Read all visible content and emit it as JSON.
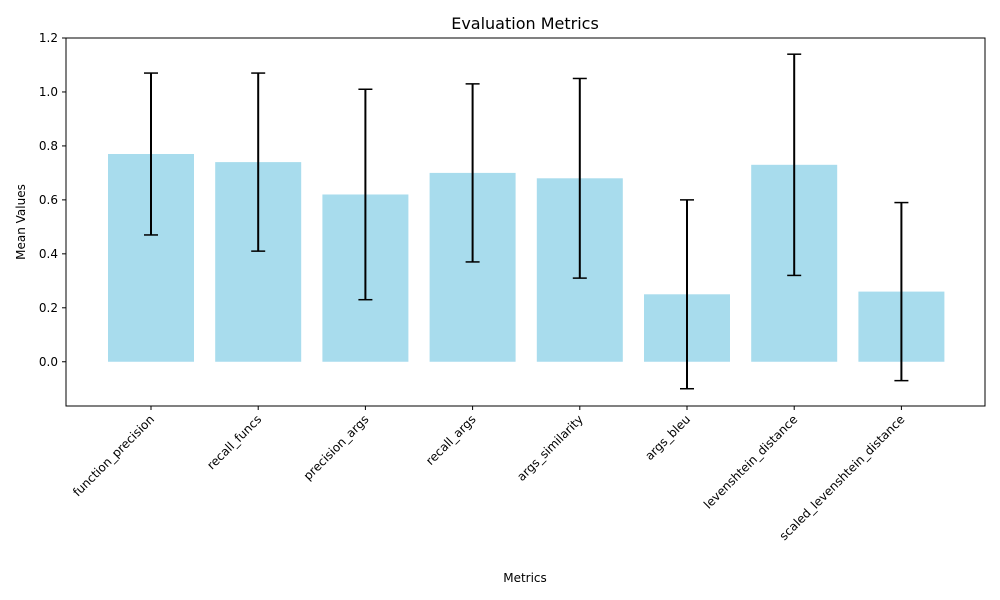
{
  "chart_data": {
    "type": "bar",
    "title": "Evaluation Metrics",
    "xlabel": "Metrics",
    "ylabel": "Mean Values",
    "categories": [
      "function_precision",
      "recall_funcs",
      "precision_args",
      "recall_args",
      "args_similarity",
      "args_bleu",
      "levenshtein_distance",
      "scaled_levenshtein_distance"
    ],
    "values": [
      0.77,
      0.74,
      0.62,
      0.7,
      0.68,
      0.25,
      0.73,
      0.26
    ],
    "errors": [
      0.3,
      0.33,
      0.39,
      0.33,
      0.37,
      0.35,
      0.41,
      0.33
    ],
    "ylim": [
      -0.164,
      1.2
    ],
    "yticks": [
      0.0,
      0.2,
      0.4,
      0.6,
      0.8,
      1.0,
      1.2
    ],
    "bar_color": "#a8dced",
    "error_color": "#000000",
    "grid": false,
    "legend": false
  }
}
